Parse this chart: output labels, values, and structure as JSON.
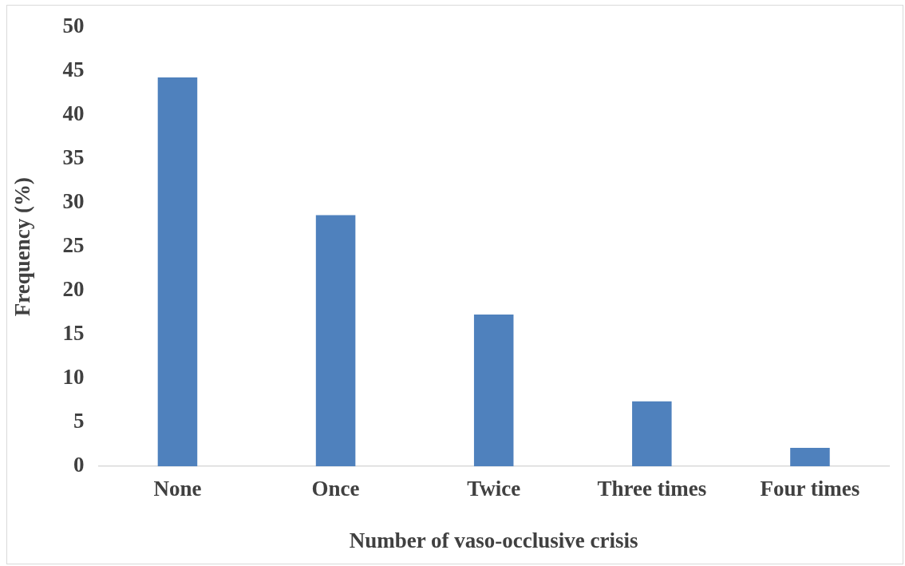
{
  "chart_data": {
    "type": "bar",
    "xlabel": "Number of vaso-occlusive crisis",
    "ylabel": "Frequency (%)",
    "categories": [
      "None",
      "Once",
      "Twice",
      "Three times",
      "Four times"
    ],
    "values": [
      44.3,
      28.6,
      17.3,
      7.4,
      2.1
    ],
    "color": "#4f81bd",
    "ylim": [
      0,
      50
    ],
    "yticks": [
      0,
      5,
      10,
      15,
      20,
      25,
      30,
      35,
      40,
      45,
      50
    ],
    "grid": false,
    "legend": false
  }
}
